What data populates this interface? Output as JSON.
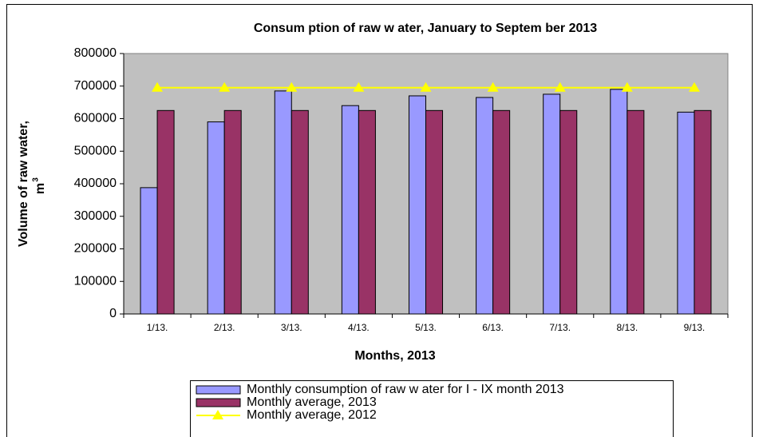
{
  "chart_data": {
    "type": "bar",
    "title": "Consum ption of raw w ater, January to Septem ber 2013",
    "xlabel": "Months, 2013",
    "ylabel": "Volume of raw water,",
    "ylabel_unit": "m",
    "ylabel_unit_power": "3",
    "categories": [
      "1/13.",
      "2/13.",
      "3/13.",
      "4/13.",
      "5/13.",
      "6/13.",
      "7/13.",
      "8/13.",
      "9/13."
    ],
    "series": [
      {
        "name": "Monthly consumption of raw  w ater for I - IX month 2013",
        "type": "bar",
        "color": "#9999ff",
        "values": [
          388000,
          590000,
          685000,
          640000,
          670000,
          665000,
          675000,
          690000,
          620000
        ]
      },
      {
        "name": "Monthly average, 2013",
        "type": "bar",
        "color": "#993366",
        "values": [
          625000,
          625000,
          625000,
          625000,
          625000,
          625000,
          625000,
          625000,
          625000
        ]
      },
      {
        "name": "Monthly average, 2012",
        "type": "line",
        "color": "#ffff00",
        "values": [
          695000,
          695000,
          695000,
          695000,
          695000,
          695000,
          695000,
          695000,
          695000
        ]
      }
    ],
    "ylim": [
      0,
      800000
    ],
    "yticks": [
      0,
      100000,
      200000,
      300000,
      400000,
      500000,
      600000,
      700000,
      800000
    ],
    "plot_background": "#c0c0c0"
  }
}
